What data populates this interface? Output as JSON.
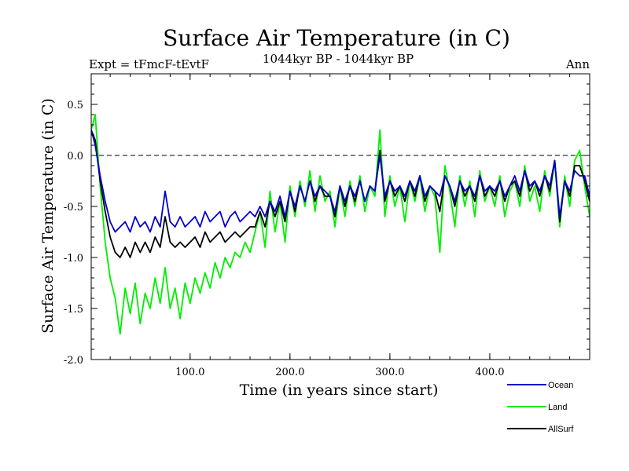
{
  "chart_data": {
    "type": "line",
    "title": "Surface Air Temperature (in C)",
    "subtitle_left": "Expt = tFmcF-tEvtF",
    "subtitle_center": "1044kyr BP - 1044kyr BP",
    "subtitle_right": "Ann",
    "xlabel": "Time (in years since start)",
    "ylabel": "Surface Air Temperature (in C)",
    "xlim": [
      1,
      500
    ],
    "ylim": [
      -2.0,
      0.8
    ],
    "xticks": [
      100,
      200,
      300,
      400
    ],
    "xtick_labels": [
      "100.0",
      "200.0",
      "300.0",
      "400.0"
    ],
    "yticks": [
      0.5,
      0.0,
      -0.5,
      -1.0,
      -1.5,
      -2.0
    ],
    "ytick_labels": [
      "0.5",
      "0.0",
      "-0.5",
      "-1.0",
      "-1.5",
      "-2.0"
    ],
    "reference_line": 0.0,
    "series": [
      {
        "name": "Land",
        "color": "#00ee00",
        "x": [
          1,
          5,
          10,
          15,
          20,
          25,
          30,
          35,
          40,
          45,
          50,
          55,
          60,
          65,
          70,
          75,
          80,
          85,
          90,
          95,
          100,
          105,
          110,
          115,
          120,
          125,
          130,
          135,
          140,
          145,
          150,
          155,
          160,
          165,
          170,
          175,
          180,
          185,
          190,
          195,
          200,
          205,
          210,
          215,
          220,
          225,
          230,
          235,
          240,
          245,
          250,
          255,
          260,
          265,
          270,
          275,
          280,
          285,
          290,
          295,
          300,
          305,
          310,
          315,
          320,
          325,
          330,
          335,
          340,
          345,
          350,
          355,
          360,
          365,
          370,
          375,
          380,
          385,
          390,
          395,
          400,
          405,
          410,
          415,
          420,
          425,
          430,
          435,
          440,
          445,
          450,
          455,
          460,
          465,
          470,
          475,
          480,
          485,
          490,
          495,
          500
        ],
        "values": [
          0.25,
          0.4,
          -0.3,
          -0.85,
          -1.2,
          -1.4,
          -1.75,
          -1.3,
          -1.55,
          -1.25,
          -1.65,
          -1.35,
          -1.5,
          -1.2,
          -1.45,
          -1.1,
          -1.5,
          -1.3,
          -1.6,
          -1.25,
          -1.45,
          -1.2,
          -1.35,
          -1.15,
          -1.3,
          -1.05,
          -1.2,
          -1.0,
          -1.1,
          -0.95,
          -1.0,
          -0.85,
          -0.95,
          -0.75,
          -0.55,
          -0.9,
          -0.35,
          -0.75,
          -0.45,
          -0.85,
          -0.3,
          -0.6,
          -0.25,
          -0.5,
          -0.15,
          -0.55,
          -0.2,
          -0.45,
          -0.35,
          -0.7,
          -0.3,
          -0.6,
          -0.25,
          -0.5,
          -0.2,
          -0.55,
          -0.3,
          -0.4,
          0.25,
          -0.6,
          -0.2,
          -0.5,
          -0.3,
          -0.65,
          -0.25,
          -0.45,
          -0.2,
          -0.55,
          -0.3,
          -0.4,
          -0.95,
          -0.1,
          -0.35,
          -0.7,
          -0.2,
          -0.5,
          -0.25,
          -0.6,
          -0.15,
          -0.45,
          -0.3,
          -0.5,
          -0.2,
          -0.6,
          -0.35,
          -0.25,
          -0.5,
          -0.1,
          -0.45,
          -0.3,
          -0.55,
          -0.15,
          -0.4,
          -0.05,
          -0.7,
          -0.2,
          -0.5,
          -0.05,
          0.05,
          -0.3,
          -0.6
        ]
      },
      {
        "name": "Ocean",
        "color": "#0000cc",
        "x": [
          1,
          5,
          10,
          15,
          20,
          25,
          30,
          35,
          40,
          45,
          50,
          55,
          60,
          65,
          70,
          75,
          80,
          85,
          90,
          95,
          100,
          105,
          110,
          115,
          120,
          125,
          130,
          135,
          140,
          145,
          150,
          155,
          160,
          165,
          170,
          175,
          180,
          185,
          190,
          195,
          200,
          205,
          210,
          215,
          220,
          225,
          230,
          235,
          240,
          245,
          250,
          255,
          260,
          265,
          270,
          275,
          280,
          285,
          290,
          295,
          300,
          305,
          310,
          315,
          320,
          325,
          330,
          335,
          340,
          345,
          350,
          355,
          360,
          365,
          370,
          375,
          380,
          385,
          390,
          395,
          400,
          405,
          410,
          415,
          420,
          425,
          430,
          435,
          440,
          445,
          450,
          455,
          460,
          465,
          470,
          475,
          480,
          485,
          490,
          495,
          500
        ],
        "values": [
          0.25,
          0.1,
          -0.2,
          -0.45,
          -0.65,
          -0.75,
          -0.7,
          -0.65,
          -0.75,
          -0.6,
          -0.7,
          -0.65,
          -0.75,
          -0.6,
          -0.7,
          -0.35,
          -0.65,
          -0.7,
          -0.6,
          -0.7,
          -0.65,
          -0.6,
          -0.7,
          -0.55,
          -0.65,
          -0.6,
          -0.55,
          -0.7,
          -0.6,
          -0.55,
          -0.65,
          -0.6,
          -0.55,
          -0.6,
          -0.5,
          -0.6,
          -0.45,
          -0.55,
          -0.4,
          -0.6,
          -0.35,
          -0.5,
          -0.3,
          -0.45,
          -0.25,
          -0.4,
          -0.3,
          -0.35,
          -0.4,
          -0.55,
          -0.3,
          -0.45,
          -0.3,
          -0.4,
          -0.25,
          -0.45,
          -0.3,
          -0.35,
          0.0,
          -0.4,
          -0.25,
          -0.35,
          -0.3,
          -0.4,
          -0.25,
          -0.35,
          -0.2,
          -0.4,
          -0.3,
          -0.35,
          -0.4,
          -0.2,
          -0.3,
          -0.45,
          -0.25,
          -0.35,
          -0.3,
          -0.4,
          -0.2,
          -0.35,
          -0.3,
          -0.35,
          -0.25,
          -0.4,
          -0.3,
          -0.2,
          -0.35,
          -0.15,
          -0.3,
          -0.25,
          -0.35,
          -0.2,
          -0.3,
          -0.05,
          -0.6,
          -0.25,
          -0.35,
          -0.15,
          -0.2,
          -0.2,
          -0.4
        ]
      },
      {
        "name": "AllSurf",
        "color": "#000000",
        "x": [
          1,
          5,
          10,
          15,
          20,
          25,
          30,
          35,
          40,
          45,
          50,
          55,
          60,
          65,
          70,
          75,
          80,
          85,
          90,
          95,
          100,
          105,
          110,
          115,
          120,
          125,
          130,
          135,
          140,
          145,
          150,
          155,
          160,
          165,
          170,
          175,
          180,
          185,
          190,
          195,
          200,
          205,
          210,
          215,
          220,
          225,
          230,
          235,
          240,
          245,
          250,
          255,
          260,
          265,
          270,
          275,
          280,
          285,
          290,
          295,
          300,
          305,
          310,
          315,
          320,
          325,
          330,
          335,
          340,
          345,
          350,
          355,
          360,
          365,
          370,
          375,
          380,
          385,
          390,
          395,
          400,
          405,
          410,
          415,
          420,
          425,
          430,
          435,
          440,
          445,
          450,
          455,
          460,
          465,
          470,
          475,
          480,
          485,
          490,
          495,
          500
        ],
        "values": [
          0.25,
          0.15,
          -0.25,
          -0.55,
          -0.8,
          -0.95,
          -1.0,
          -0.9,
          -1.0,
          -0.85,
          -0.95,
          -0.85,
          -0.95,
          -0.8,
          -0.9,
          -0.6,
          -0.85,
          -0.9,
          -0.85,
          -0.9,
          -0.85,
          -0.8,
          -0.9,
          -0.75,
          -0.85,
          -0.8,
          -0.75,
          -0.85,
          -0.8,
          -0.75,
          -0.8,
          -0.75,
          -0.7,
          -0.7,
          -0.55,
          -0.7,
          -0.45,
          -0.6,
          -0.45,
          -0.65,
          -0.35,
          -0.55,
          -0.3,
          -0.45,
          -0.25,
          -0.45,
          -0.3,
          -0.4,
          -0.4,
          -0.6,
          -0.3,
          -0.5,
          -0.3,
          -0.45,
          -0.25,
          -0.45,
          -0.3,
          -0.35,
          0.05,
          -0.45,
          -0.25,
          -0.4,
          -0.3,
          -0.45,
          -0.25,
          -0.4,
          -0.2,
          -0.45,
          -0.3,
          -0.35,
          -0.55,
          -0.2,
          -0.3,
          -0.5,
          -0.25,
          -0.4,
          -0.3,
          -0.45,
          -0.2,
          -0.4,
          -0.3,
          -0.4,
          -0.25,
          -0.45,
          -0.3,
          -0.25,
          -0.4,
          -0.15,
          -0.35,
          -0.25,
          -0.4,
          -0.2,
          -0.35,
          -0.05,
          -0.65,
          -0.25,
          -0.4,
          -0.1,
          -0.1,
          -0.25,
          -0.45
        ]
      }
    ],
    "legend": {
      "position": "bottom-right",
      "entries": [
        {
          "label": "Ocean",
          "color": "#0000cc"
        },
        {
          "label": "Land",
          "color": "#00ee00"
        },
        {
          "label": "AllSurf",
          "color": "#000000"
        }
      ]
    }
  }
}
